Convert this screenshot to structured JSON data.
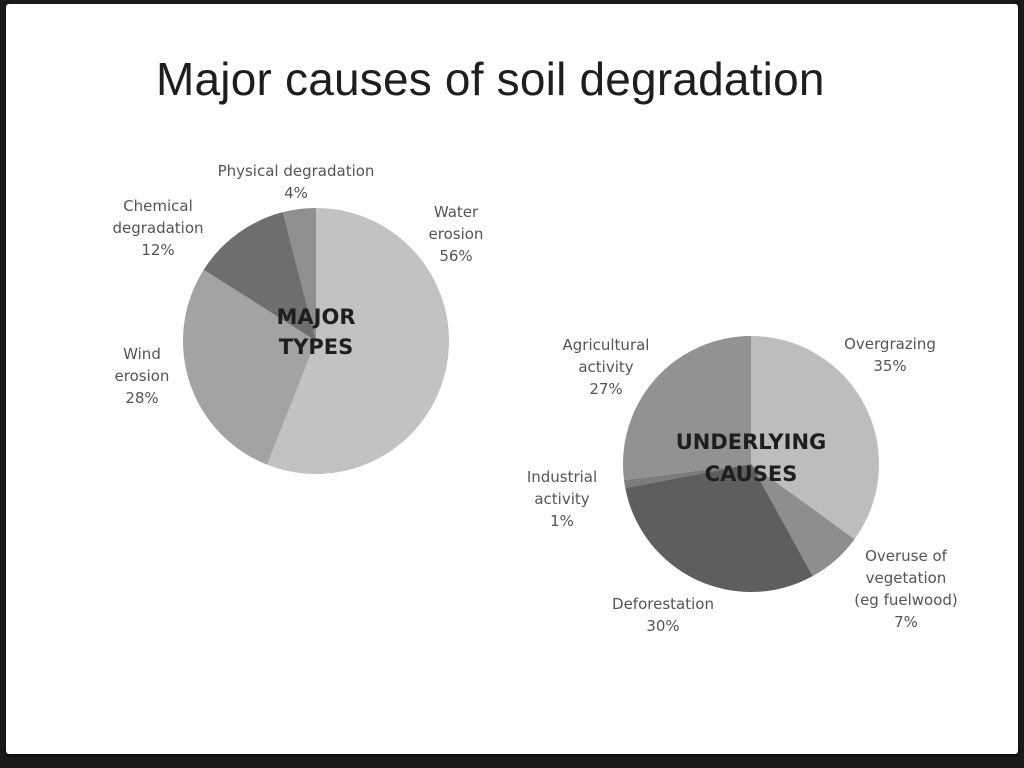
{
  "slide": {
    "title": "Major causes of soil degradation"
  },
  "chart_data": [
    {
      "type": "pie",
      "center_label": [
        "MAJOR",
        "TYPES"
      ],
      "slices": [
        {
          "label": [
            "Water",
            "erosion",
            "56%"
          ],
          "value": 56,
          "color": "#c2c2c2"
        },
        {
          "label": [
            "Wind",
            "erosion",
            "28%"
          ],
          "value": 28,
          "color": "#a3a3a3"
        },
        {
          "label": [
            "Chemical",
            "degradation",
            "12%"
          ],
          "value": 12,
          "color": "#6e6e6e"
        },
        {
          "label": [
            "Physical degradation",
            "4%"
          ],
          "value": 4,
          "color": "#8f8f8f"
        }
      ]
    },
    {
      "type": "pie",
      "center_label": [
        "UNDERLYING",
        "CAUSES"
      ],
      "slices": [
        {
          "label": [
            "Overgrazing",
            "35%"
          ],
          "value": 35,
          "color": "#bdbdbd"
        },
        {
          "label": [
            "Overuse of",
            "vegetation",
            "(eg fuelwood)",
            "7%"
          ],
          "value": 7,
          "color": "#8e8e8e"
        },
        {
          "label": [
            "Deforestation",
            "30%"
          ],
          "value": 30,
          "color": "#5e5e5e"
        },
        {
          "label": [
            "Industrial",
            "activity",
            "1%"
          ],
          "value": 1,
          "color": "#7c7c7c"
        },
        {
          "label": [
            "Agricultural",
            "activity",
            "27%"
          ],
          "value": 27,
          "color": "#929292"
        }
      ]
    }
  ]
}
